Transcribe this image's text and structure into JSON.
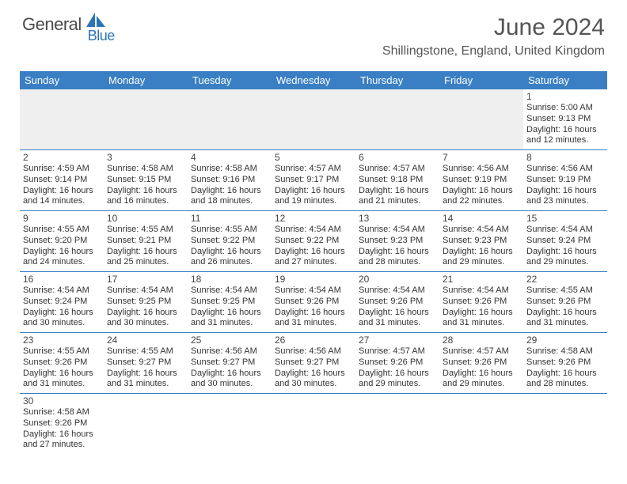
{
  "logo": {
    "part1": "General",
    "part2": "Blue"
  },
  "title": "June 2024",
  "location": "Shillingstone, England, United Kingdom",
  "colors": {
    "header_bg": "#3a7fc4",
    "header_text": "#ffffff",
    "border": "#3a7fc4",
    "blank_bg": "#efefef",
    "logo_gray": "#4a4a4a",
    "logo_blue": "#2e74b5",
    "title_color": "#555555",
    "cell_text": "#333333"
  },
  "weekdays": [
    "Sunday",
    "Monday",
    "Tuesday",
    "Wednesday",
    "Thursday",
    "Friday",
    "Saturday"
  ],
  "weeks": [
    [
      null,
      null,
      null,
      null,
      null,
      null,
      {
        "n": "1",
        "sunrise": "5:00 AM",
        "sunset": "9:13 PM",
        "dlh": "16",
        "dlm": "12"
      }
    ],
    [
      {
        "n": "2",
        "sunrise": "4:59 AM",
        "sunset": "9:14 PM",
        "dlh": "16",
        "dlm": "14"
      },
      {
        "n": "3",
        "sunrise": "4:58 AM",
        "sunset": "9:15 PM",
        "dlh": "16",
        "dlm": "16"
      },
      {
        "n": "4",
        "sunrise": "4:58 AM",
        "sunset": "9:16 PM",
        "dlh": "16",
        "dlm": "18"
      },
      {
        "n": "5",
        "sunrise": "4:57 AM",
        "sunset": "9:17 PM",
        "dlh": "16",
        "dlm": "19"
      },
      {
        "n": "6",
        "sunrise": "4:57 AM",
        "sunset": "9:18 PM",
        "dlh": "16",
        "dlm": "21"
      },
      {
        "n": "7",
        "sunrise": "4:56 AM",
        "sunset": "9:19 PM",
        "dlh": "16",
        "dlm": "22"
      },
      {
        "n": "8",
        "sunrise": "4:56 AM",
        "sunset": "9:19 PM",
        "dlh": "16",
        "dlm": "23"
      }
    ],
    [
      {
        "n": "9",
        "sunrise": "4:55 AM",
        "sunset": "9:20 PM",
        "dlh": "16",
        "dlm": "24"
      },
      {
        "n": "10",
        "sunrise": "4:55 AM",
        "sunset": "9:21 PM",
        "dlh": "16",
        "dlm": "25"
      },
      {
        "n": "11",
        "sunrise": "4:55 AM",
        "sunset": "9:22 PM",
        "dlh": "16",
        "dlm": "26"
      },
      {
        "n": "12",
        "sunrise": "4:54 AM",
        "sunset": "9:22 PM",
        "dlh": "16",
        "dlm": "27"
      },
      {
        "n": "13",
        "sunrise": "4:54 AM",
        "sunset": "9:23 PM",
        "dlh": "16",
        "dlm": "28"
      },
      {
        "n": "14",
        "sunrise": "4:54 AM",
        "sunset": "9:23 PM",
        "dlh": "16",
        "dlm": "29"
      },
      {
        "n": "15",
        "sunrise": "4:54 AM",
        "sunset": "9:24 PM",
        "dlh": "16",
        "dlm": "29"
      }
    ],
    [
      {
        "n": "16",
        "sunrise": "4:54 AM",
        "sunset": "9:24 PM",
        "dlh": "16",
        "dlm": "30"
      },
      {
        "n": "17",
        "sunrise": "4:54 AM",
        "sunset": "9:25 PM",
        "dlh": "16",
        "dlm": "30"
      },
      {
        "n": "18",
        "sunrise": "4:54 AM",
        "sunset": "9:25 PM",
        "dlh": "16",
        "dlm": "31"
      },
      {
        "n": "19",
        "sunrise": "4:54 AM",
        "sunset": "9:26 PM",
        "dlh": "16",
        "dlm": "31"
      },
      {
        "n": "20",
        "sunrise": "4:54 AM",
        "sunset": "9:26 PM",
        "dlh": "16",
        "dlm": "31"
      },
      {
        "n": "21",
        "sunrise": "4:54 AM",
        "sunset": "9:26 PM",
        "dlh": "16",
        "dlm": "31"
      },
      {
        "n": "22",
        "sunrise": "4:55 AM",
        "sunset": "9:26 PM",
        "dlh": "16",
        "dlm": "31"
      }
    ],
    [
      {
        "n": "23",
        "sunrise": "4:55 AM",
        "sunset": "9:26 PM",
        "dlh": "16",
        "dlm": "31"
      },
      {
        "n": "24",
        "sunrise": "4:55 AM",
        "sunset": "9:27 PM",
        "dlh": "16",
        "dlm": "31"
      },
      {
        "n": "25",
        "sunrise": "4:56 AM",
        "sunset": "9:27 PM",
        "dlh": "16",
        "dlm": "30"
      },
      {
        "n": "26",
        "sunrise": "4:56 AM",
        "sunset": "9:27 PM",
        "dlh": "16",
        "dlm": "30"
      },
      {
        "n": "27",
        "sunrise": "4:57 AM",
        "sunset": "9:26 PM",
        "dlh": "16",
        "dlm": "29"
      },
      {
        "n": "28",
        "sunrise": "4:57 AM",
        "sunset": "9:26 PM",
        "dlh": "16",
        "dlm": "29"
      },
      {
        "n": "29",
        "sunrise": "4:58 AM",
        "sunset": "9:26 PM",
        "dlh": "16",
        "dlm": "28"
      }
    ],
    [
      {
        "n": "30",
        "sunrise": "4:58 AM",
        "sunset": "9:26 PM",
        "dlh": "16",
        "dlm": "27"
      },
      null,
      null,
      null,
      null,
      null,
      null
    ]
  ],
  "labels": {
    "sunrise_prefix": "Sunrise: ",
    "sunset_prefix": "Sunset: ",
    "daylight_prefix": "Daylight: ",
    "hours_word": " hours",
    "and_word": "and ",
    "minutes_word": " minutes."
  }
}
